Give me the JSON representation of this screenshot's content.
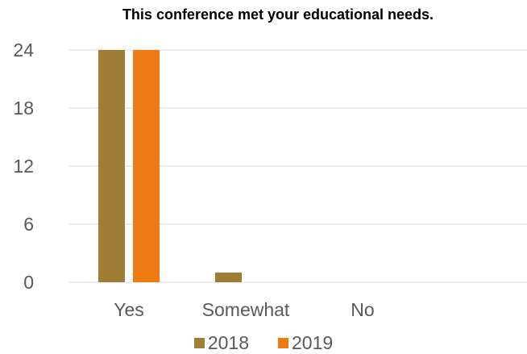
{
  "chart_data": {
    "type": "bar",
    "title": "This conference met your educational needs.",
    "categories": [
      "Yes",
      "Somewhat",
      "No"
    ],
    "series": [
      {
        "name": "2018",
        "values": [
          24,
          1,
          0
        ],
        "color": "#a07d35"
      },
      {
        "name": "2019",
        "values": [
          24,
          0,
          0
        ],
        "color": "#ee7b12"
      }
    ],
    "yticks": [
      0,
      6,
      12,
      18,
      24
    ],
    "ylim": [
      0,
      24
    ],
    "grid": true,
    "legend": "bottom"
  }
}
